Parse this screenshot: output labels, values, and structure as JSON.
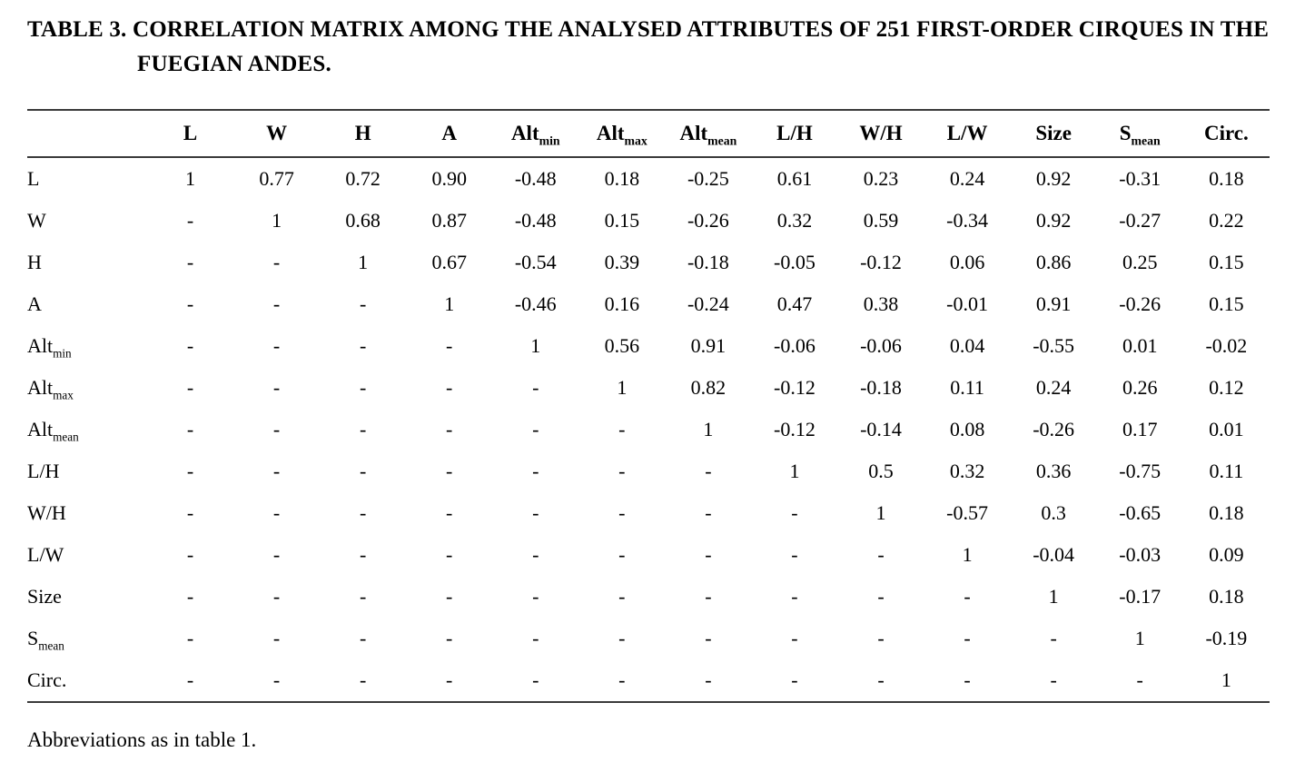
{
  "page": {
    "title": "TABLE 3. CORRELATION MATRIX AMONG THE ANALYSED ATTRIBUTES OF 251 FIRST-ORDER CIRQUES IN THE FUEGIAN ANDES.",
    "footnote": "Abbreviations as in table 1."
  },
  "chart_data": {
    "type": "table",
    "title": "TABLE 3. CORRELATION MATRIX AMONG THE ANALYSED ATTRIBUTES OF 251 FIRST-ORDER CIRQUES IN THE FUEGIAN ANDES.",
    "note": "Subscripts are encoded after a | character, e.g. Alt|min renders as Alt with subscript min.",
    "columns": [
      "",
      "L",
      "W",
      "H",
      "A",
      "Alt|min",
      "Alt|max",
      "Alt|mean",
      "L/H",
      "W/H",
      "L/W",
      "Size",
      "S|mean",
      "Circ."
    ],
    "rows": [
      {
        "label": "L",
        "cells": [
          "1",
          "0.77",
          "0.72",
          "0.90",
          "-0.48",
          "0.18",
          "-0.25",
          "0.61",
          "0.23",
          "0.24",
          "0.92",
          "-0.31",
          "0.18"
        ]
      },
      {
        "label": "W",
        "cells": [
          "-",
          "1",
          "0.68",
          "0.87",
          "-0.48",
          "0.15",
          "-0.26",
          "0.32",
          "0.59",
          "-0.34",
          "0.92",
          "-0.27",
          "0.22"
        ]
      },
      {
        "label": "H",
        "cells": [
          "-",
          "-",
          "1",
          "0.67",
          "-0.54",
          "0.39",
          "-0.18",
          "-0.05",
          "-0.12",
          "0.06",
          "0.86",
          "0.25",
          "0.15"
        ]
      },
      {
        "label": "A",
        "cells": [
          "-",
          "-",
          "-",
          "1",
          "-0.46",
          "0.16",
          "-0.24",
          "0.47",
          "0.38",
          "-0.01",
          "0.91",
          "-0.26",
          "0.15"
        ]
      },
      {
        "label": "Alt|min",
        "cells": [
          "-",
          "-",
          "-",
          "-",
          "1",
          "0.56",
          "0.91",
          "-0.06",
          "-0.06",
          "0.04",
          "-0.55",
          "0.01",
          "-0.02"
        ]
      },
      {
        "label": "Alt|max",
        "cells": [
          "-",
          "-",
          "-",
          "-",
          "-",
          "1",
          "0.82",
          "-0.12",
          "-0.18",
          "0.11",
          "0.24",
          "0.26",
          "0.12"
        ]
      },
      {
        "label": "Alt|mean",
        "cells": [
          "-",
          "-",
          "-",
          "-",
          "-",
          "-",
          "1",
          "-0.12",
          "-0.14",
          "0.08",
          "-0.26",
          "0.17",
          "0.01"
        ]
      },
      {
        "label": "L/H",
        "cells": [
          "-",
          "-",
          "-",
          "-",
          "-",
          "-",
          "-",
          "1",
          "0.5",
          "0.32",
          "0.36",
          "-0.75",
          "0.11"
        ]
      },
      {
        "label": "W/H",
        "cells": [
          "-",
          "-",
          "-",
          "-",
          "-",
          "-",
          "-",
          "-",
          "1",
          "-0.57",
          "0.3",
          "-0.65",
          "0.18"
        ]
      },
      {
        "label": "L/W",
        "cells": [
          "-",
          "-",
          "-",
          "-",
          "-",
          "-",
          "-",
          "-",
          "-",
          "1",
          "-0.04",
          "-0.03",
          "0.09"
        ]
      },
      {
        "label": "Size",
        "cells": [
          "-",
          "-",
          "-",
          "-",
          "-",
          "-",
          "-",
          "-",
          "-",
          "-",
          "1",
          "-0.17",
          "0.18"
        ]
      },
      {
        "label": "S|mean",
        "cells": [
          "-",
          "-",
          "-",
          "-",
          "-",
          "-",
          "-",
          "-",
          "-",
          "-",
          "-",
          "1",
          "-0.19"
        ]
      },
      {
        "label": "Circ.",
        "cells": [
          "-",
          "-",
          "-",
          "-",
          "-",
          "-",
          "-",
          "-",
          "-",
          "-",
          "-",
          "-",
          "1"
        ]
      }
    ]
  }
}
